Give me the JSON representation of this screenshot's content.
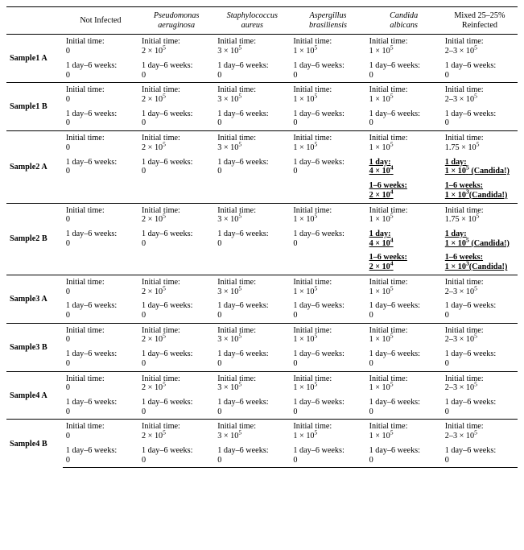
{
  "columns": [
    {
      "line1": "",
      "line2": "",
      "italic": false
    },
    {
      "line1": "Not Infected",
      "line2": "",
      "italic": false
    },
    {
      "line1": "Pseudomonas",
      "line2": "aeruginosa",
      "italic": true
    },
    {
      "line1": "Staphylococcus",
      "line2": "aureus",
      "italic": true
    },
    {
      "line1": "Aspergillus",
      "line2": "brasiliensis",
      "italic": true
    },
    {
      "line1": "Candida",
      "line2": "albicans",
      "italic": true
    },
    {
      "line1": "Mixed 25–25%",
      "line2": "Reinfected",
      "italic": false
    }
  ],
  "exp5": "5",
  "exp4": "4",
  "exp3": "3",
  "samples": [
    {
      "label": "Sample1 A",
      "rows": [
        [
          {
            "l1": "Initial time:",
            "l2": "0"
          },
          {
            "l1": "Initial time:",
            "l2": "2 × 10",
            "exp": "5"
          },
          {
            "l1": "Initial time:",
            "l2": "3 × 10",
            "exp": "5"
          },
          {
            "l1": "Initial time:",
            "l2": "1 × 10",
            "exp": "5"
          },
          {
            "l1": "Initial time:",
            "l2": "1 × 10",
            "exp": "5"
          },
          {
            "l1": "Initial time:",
            "l2": "2–3 × 10",
            "exp": "5"
          }
        ],
        [
          {
            "l1": "1 day–6 weeks:",
            "l2": "0"
          },
          {
            "l1": "1 day–6 weeks:",
            "l2": "0"
          },
          {
            "l1": "1 day–6 weeks:",
            "l2": "0"
          },
          {
            "l1": "1 day–6 weeks:",
            "l2": "0"
          },
          {
            "l1": "1 day–6 weeks:",
            "l2": "0"
          },
          {
            "l1": "1 day–6 weeks:",
            "l2": "0"
          }
        ]
      ]
    },
    {
      "label": "Sample1 B",
      "rows": [
        [
          {
            "l1": "Initial time:",
            "l2": "0"
          },
          {
            "l1": "Initial time:",
            "l2": "2 × 10",
            "exp": "5"
          },
          {
            "l1": "Initial time:",
            "l2": "3 × 10",
            "exp": "5"
          },
          {
            "l1": "Initial time:",
            "l2": "1 × 10",
            "exp": "5"
          },
          {
            "l1": "Initial time:",
            "l2": "1 × 10",
            "exp": "5"
          },
          {
            "l1": "Initial time:",
            "l2": "2–3 × 10",
            "exp": "5"
          }
        ],
        [
          {
            "l1": "1 day–6 weeks:",
            "l2": "0"
          },
          {
            "l1": "1 day–6 weeks:",
            "l2": "0"
          },
          {
            "l1": "1 day–6 weeks:",
            "l2": "0"
          },
          {
            "l1": "1 day–6 weeks:",
            "l2": "0"
          },
          {
            "l1": "1 day–6 weeks:",
            "l2": "0"
          },
          {
            "l1": "1 day–6 weeks:",
            "l2": "0"
          }
        ]
      ]
    },
    {
      "label": "Sample2 A",
      "rows": [
        [
          {
            "l1": "Initial time:",
            "l2": "0"
          },
          {
            "l1": "Initial time:",
            "l2": "2 × 10",
            "exp": "5"
          },
          {
            "l1": "Initial time:",
            "l2": "3 × 10",
            "exp": "5"
          },
          {
            "l1": "Initial time:",
            "l2": "1 × 10",
            "exp": "5"
          },
          {
            "l1": "Initial time:",
            "l2": "1 × 10",
            "exp": "5"
          },
          {
            "l1": "Initial time:",
            "l2": "1.75 × 10",
            "exp": "5"
          }
        ],
        [
          {
            "l1": "1 day–6 weeks:",
            "l2": "0"
          },
          {
            "l1": "1 day–6 weeks:",
            "l2": "0"
          },
          {
            "l1": "1 day–6 weeks:",
            "l2": "0"
          },
          {
            "l1": "1 day–6 weeks:",
            "l2": "0"
          },
          {
            "l1": "1 day:",
            "l2": "4 × 10",
            "exp": "4",
            "bold": true,
            "uline": true
          },
          {
            "l1": "1 day:",
            "l2": "1 × 10",
            "exp": "5",
            "suffix": " (Candida!)",
            "bold": true,
            "uline": true
          }
        ],
        [
          null,
          null,
          null,
          null,
          {
            "l1": "1–6 weeks:",
            "l2": "2 × 10",
            "exp": "4",
            "bold": true,
            "uline": true
          },
          {
            "l1": "1–6 weeks:",
            "l2": "1 × 10",
            "exp": "3",
            "suffix": "(Candida!)",
            "bold": true,
            "uline": true
          }
        ]
      ]
    },
    {
      "label": "Sample2 B",
      "rows": [
        [
          {
            "l1": "Initial time:",
            "l2": "0"
          },
          {
            "l1": "Initial time:",
            "l2": "2 × 10",
            "exp": "5"
          },
          {
            "l1": "Initial time:",
            "l2": "3 × 10",
            "exp": "5"
          },
          {
            "l1": "Initial time:",
            "l2": "1 × 10",
            "exp": "5"
          },
          {
            "l1": "Initial time:",
            "l2": "1 × 10",
            "exp": "5"
          },
          {
            "l1": "Initial time:",
            "l2": "1.75 × 10",
            "exp": "5"
          }
        ],
        [
          {
            "l1": "1 day–6 weeks:",
            "l2": "0"
          },
          {
            "l1": "1 day–6 weeks:",
            "l2": "0"
          },
          {
            "l1": "1 day–6 weeks:",
            "l2": "0"
          },
          {
            "l1": "1 day–6 weeks:",
            "l2": "0"
          },
          {
            "l1": "1 day:",
            "l2": "4 × 10",
            "exp": "4",
            "bold": true,
            "uline": true
          },
          {
            "l1": "1 day:",
            "l2": "1 × 10",
            "exp": "5",
            "suffix": " (Candida!)",
            "bold": true,
            "uline": true
          }
        ],
        [
          null,
          null,
          null,
          null,
          {
            "l1": "1–6 weeks:",
            "l2": "2 × 10",
            "exp": "4",
            "bold": true,
            "uline": true
          },
          {
            "l1": "1–6 weeks:",
            "l2": "1 × 10",
            "exp": "3",
            "suffix": "(Candida!)",
            "bold": true,
            "uline": true
          }
        ]
      ]
    },
    {
      "label": "Sample3 A",
      "rows": [
        [
          {
            "l1": "Initial time:",
            "l2": "0"
          },
          {
            "l1": "Initial time:",
            "l2": "2 × 10",
            "exp": "5"
          },
          {
            "l1": "Initial time:",
            "l2": "3 × 10",
            "exp": "5"
          },
          {
            "l1": "Initial time:",
            "l2": "1 × 10",
            "exp": "5"
          },
          {
            "l1": "Initial time:",
            "l2": "1 × 10",
            "exp": "5"
          },
          {
            "l1": "Initial time:",
            "l2": "2–3 × 10",
            "exp": "5"
          }
        ],
        [
          {
            "l1": "1 day–6 weeks:",
            "l2": "0"
          },
          {
            "l1": "1 day–6 weeks:",
            "l2": "0"
          },
          {
            "l1": "1 day–6 weeks:",
            "l2": "0"
          },
          {
            "l1": "1 day–6 weeks:",
            "l2": "0"
          },
          {
            "l1": "1 day–6 weeks:",
            "l2": "0"
          },
          {
            "l1": "1 day–6 weeks:",
            "l2": "0"
          }
        ]
      ]
    },
    {
      "label": "Sample3 B",
      "rows": [
        [
          {
            "l1": "Initial time:",
            "l2": "0"
          },
          {
            "l1": "Initial time:",
            "l2": "2 × 10",
            "exp": "5"
          },
          {
            "l1": "Initial time:",
            "l2": "3 × 10",
            "exp": "5"
          },
          {
            "l1": "Initial time:",
            "l2": "1 × 10",
            "exp": "5"
          },
          {
            "l1": "Initial time:",
            "l2": "1 × 10",
            "exp": "5"
          },
          {
            "l1": "Initial time:",
            "l2": "2–3 × 10",
            "exp": "5"
          }
        ],
        [
          {
            "l1": "1 day–6 weeks:",
            "l2": "0"
          },
          {
            "l1": "1 day–6 weeks:",
            "l2": "0"
          },
          {
            "l1": "1 day–6 weeks:",
            "l2": "0"
          },
          {
            "l1": "1 day–6 weeks:",
            "l2": "0"
          },
          {
            "l1": "1 day–6 weeks:",
            "l2": "0"
          },
          {
            "l1": "1 day–6 weeks:",
            "l2": "0"
          }
        ]
      ]
    },
    {
      "label": "Sample4 A",
      "rows": [
        [
          {
            "l1": "Initial time:",
            "l2": "0"
          },
          {
            "l1": "Initial time:",
            "l2": "2 × 10",
            "exp": "5"
          },
          {
            "l1": "Initial time:",
            "l2": "3 × 10",
            "exp": "5"
          },
          {
            "l1": "Initial time:",
            "l2": "1 × 10",
            "exp": "5"
          },
          {
            "l1": "Initial time:",
            "l2": "1 × 10",
            "exp": "5"
          },
          {
            "l1": "Initial time:",
            "l2": "2–3 × 10",
            "exp": "5"
          }
        ],
        [
          {
            "l1": "1 day–6 weeks:",
            "l2": "0"
          },
          {
            "l1": "1 day–6 weeks:",
            "l2": "0"
          },
          {
            "l1": "1 day–6 weeks:",
            "l2": "0"
          },
          {
            "l1": "1 day–6 weeks:",
            "l2": "0"
          },
          {
            "l1": "1 day–6 weeks:",
            "l2": "0"
          },
          {
            "l1": "1 day–6 weeks:",
            "l2": "0"
          }
        ]
      ]
    },
    {
      "label": "Sample4 B",
      "rows": [
        [
          {
            "l1": "Initial time:",
            "l2": "0"
          },
          {
            "l1": "Initial time:",
            "l2": "2 × 10",
            "exp": "5"
          },
          {
            "l1": "Initial time:",
            "l2": "3 × 10",
            "exp": "5"
          },
          {
            "l1": "Initial time:",
            "l2": "1 × 10",
            "exp": "5"
          },
          {
            "l1": "Initial time:",
            "l2": "1 × 10",
            "exp": "5"
          },
          {
            "l1": "Initial time:",
            "l2": "2–3 × 10",
            "exp": "5"
          }
        ],
        [
          {
            "l1": "1 day–6 weeks:",
            "l2": "0"
          },
          {
            "l1": "1 day–6 weeks:",
            "l2": "0"
          },
          {
            "l1": "1 day–6 weeks:",
            "l2": "0"
          },
          {
            "l1": "1 day–6 weeks:",
            "l2": "0"
          },
          {
            "l1": "1 day–6 weeks:",
            "l2": "0"
          },
          {
            "l1": "1 day–6 weeks:",
            "l2": "0"
          }
        ]
      ]
    }
  ]
}
